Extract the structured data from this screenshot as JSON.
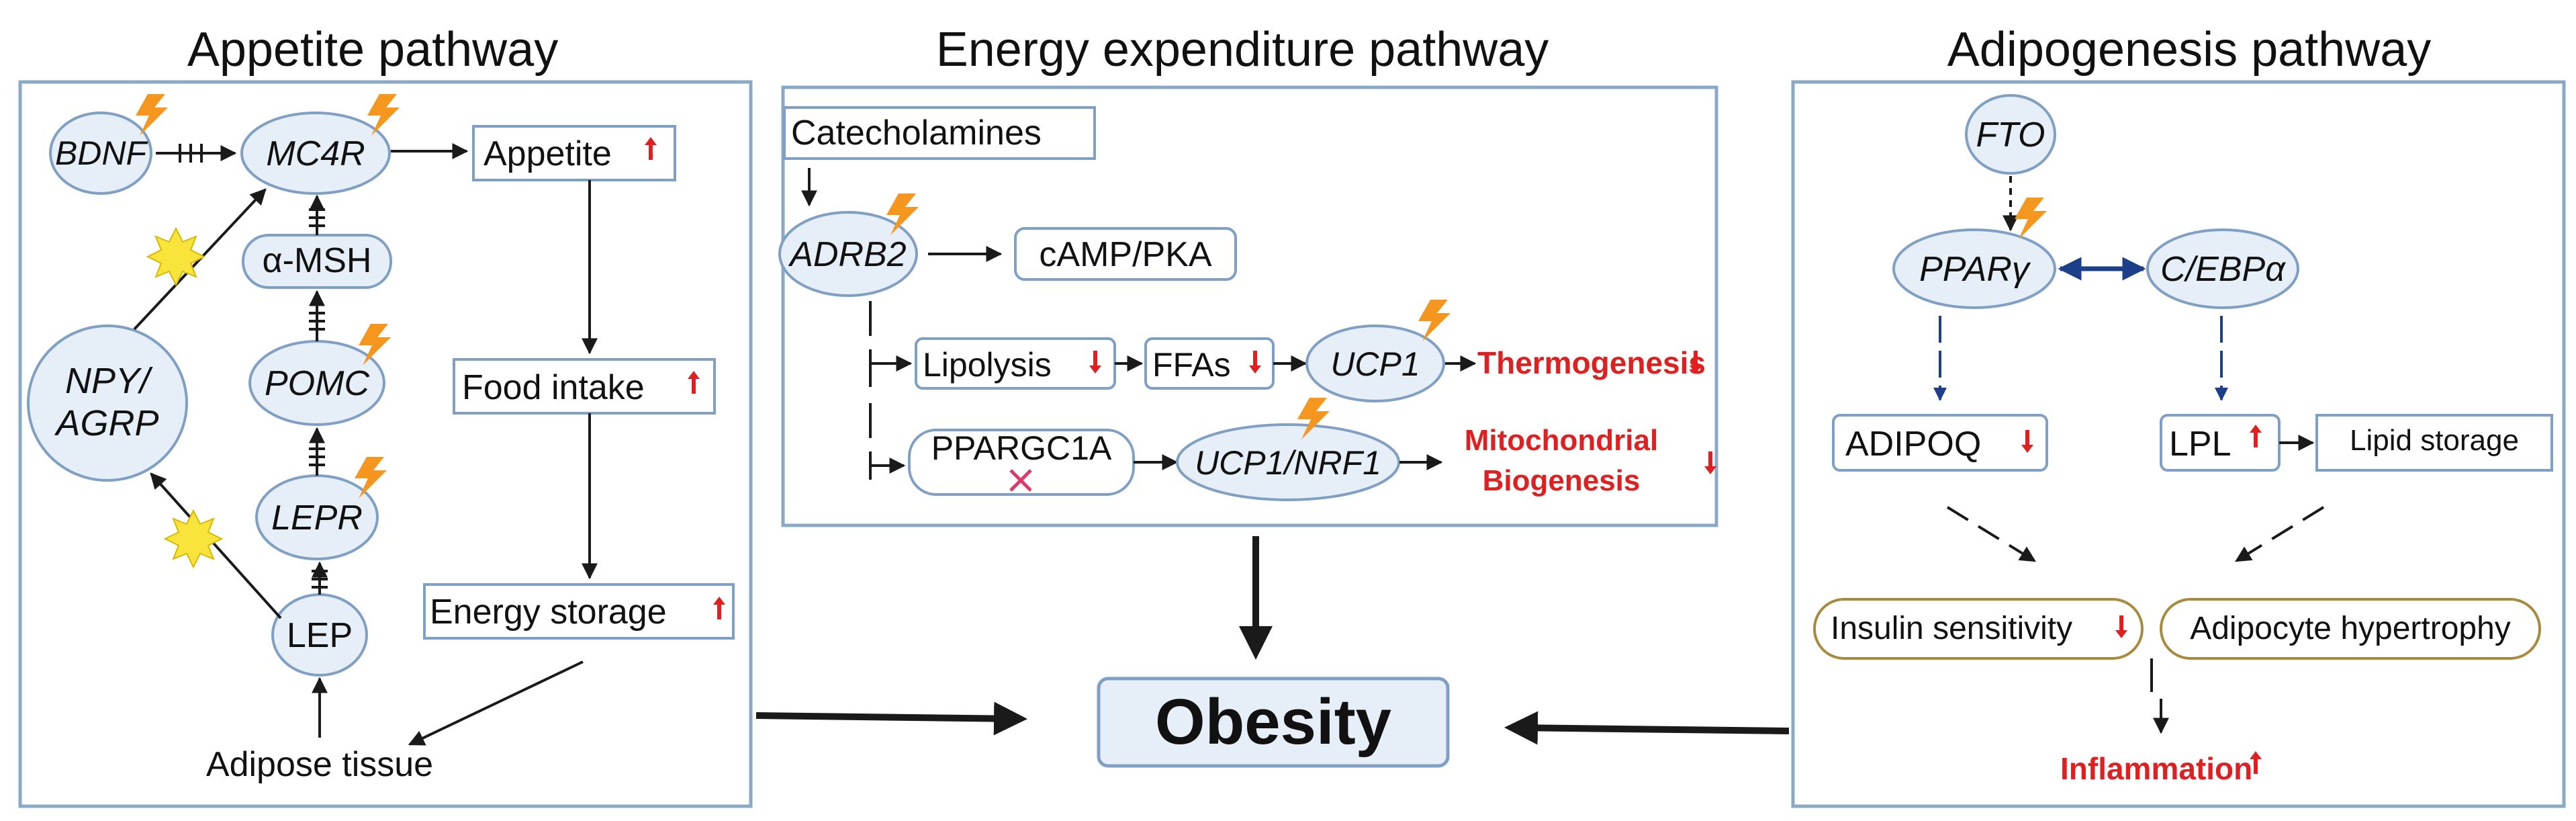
{
  "titles": {
    "appetite": "Appetite pathway",
    "energy": "Energy expenditure pathway",
    "adipogenesis": "Adipogenesis pathway"
  },
  "appetite": {
    "bdnf": "BDNF",
    "mc4r": "MC4R",
    "appetite": "Appetite",
    "amsh": "α-MSH",
    "pomc": "POMC",
    "npy_line1": "NPY/",
    "npy_line2": "AGRP",
    "lepr": "LEPR",
    "lep": "LEP",
    "food_intake": "Food intake",
    "energy_storage": "Energy storage",
    "adipose_tissue": "Adipose tissue"
  },
  "energy": {
    "catecholamines": "Catecholamines",
    "adrb2": "ADRB2",
    "camp": "cAMP/PKA",
    "lipolysis": "Lipolysis",
    "ffas": "FFAs",
    "ucp1": "UCP1",
    "thermogenesis": "Thermogenesis",
    "ppargc1a": "PPARGC1A",
    "ucp1_nrf1": "UCP1/NRF1",
    "mito_line1": "Mitochondrial",
    "mito_line2": "Biogenesis"
  },
  "adipogenesis": {
    "fto": "FTO",
    "ppary": "PPARγ",
    "cebpa": "C/EBPα",
    "adipoq": "ADIPOQ",
    "lpl": "LPL",
    "lipid_storage": "Lipid storage",
    "insulin_sensitivity": "Insulin sensitivity",
    "adipocyte_hypertrophy": "Adipocyte hypertrophy",
    "inflammation": "Inflammation"
  },
  "center": {
    "obesity": "Obesity"
  },
  "colors": {
    "panel_border": "#8aa8c8",
    "node_fill": "#e6eef8",
    "node_border": "#7f9fc4",
    "arrow": "#1a1a1a",
    "dark_blue": "#1c3f8a",
    "red": "#e02020",
    "lightning": "#f5961e",
    "burst": "#f8e43a",
    "oval_gold": "#a88a3c",
    "obesity_fill": "#e6eef8"
  }
}
